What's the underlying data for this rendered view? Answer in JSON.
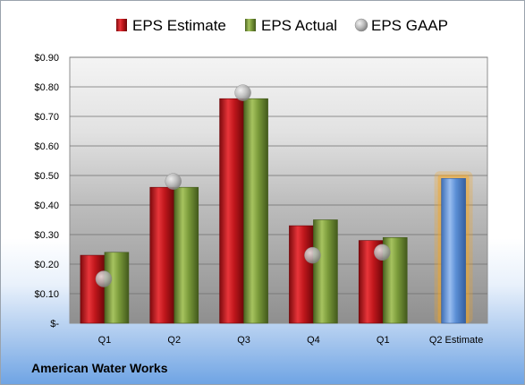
{
  "company_name": "American Water Works",
  "chart_data": {
    "type": "bar",
    "title": "",
    "xlabel": "",
    "ylabel": "",
    "categories": [
      "Q1",
      "Q2",
      "Q3",
      "Q4",
      "Q1",
      "Q2 Estimate"
    ],
    "ylim": [
      0,
      0.9
    ],
    "yticks": [
      0,
      0.1,
      0.2,
      0.3,
      0.4,
      0.5,
      0.6,
      0.7,
      0.8,
      0.9
    ],
    "ytick_labels": [
      "$-",
      "$0.10",
      "$0.20",
      "$0.30",
      "$0.40",
      "$0.50",
      "$0.60",
      "$0.70",
      "$0.80",
      "$0.90"
    ],
    "grid": true,
    "legend_position": "top",
    "series": [
      {
        "name": "EPS Estimate",
        "type": "bar",
        "color": "#c0171c",
        "values": [
          0.23,
          0.46,
          0.76,
          0.33,
          0.28,
          null
        ]
      },
      {
        "name": "EPS Actual",
        "type": "bar",
        "color": "#7a9a3a",
        "values": [
          0.24,
          0.46,
          0.76,
          0.35,
          0.29,
          null
        ]
      },
      {
        "name": "EPS GAAP",
        "type": "scatter",
        "color": "#a8a8a8",
        "values": [
          0.15,
          0.48,
          0.78,
          0.23,
          0.24,
          null
        ]
      }
    ],
    "highlight": {
      "category_index": 5,
      "value": 0.49,
      "color": "#5b8fd6",
      "glow_color": "#f5a623"
    }
  }
}
